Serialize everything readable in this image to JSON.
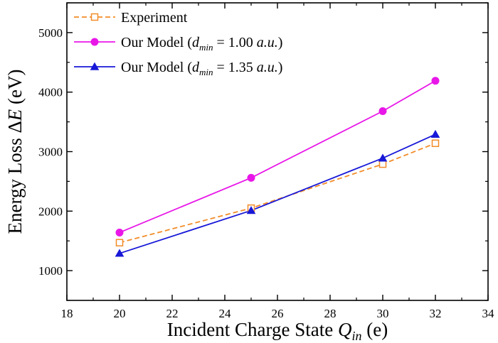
{
  "chart_data": {
    "type": "line",
    "xlabel": {
      "main": "Incident Charge State ",
      "var": "Q",
      "sub": "in",
      "unit": " (e)"
    },
    "ylabel": {
      "main": "Energy Loss Δ",
      "var": "E",
      "unit": " (eV)"
    },
    "xlim": [
      18,
      34
    ],
    "ylim": [
      500,
      5500
    ],
    "xticks": [
      18,
      20,
      22,
      24,
      26,
      28,
      30,
      32,
      34
    ],
    "yticks": [
      1000,
      2000,
      3000,
      4000,
      5000
    ],
    "grid": false,
    "legend_position": "top-left",
    "series": [
      {
        "name": "Experiment",
        "legend_parts": [
          {
            "t": "Experiment"
          }
        ],
        "color": "#f28c28",
        "dash": true,
        "marker": "square-open",
        "x": [
          20,
          25,
          30,
          32
        ],
        "y": [
          1470,
          2050,
          2790,
          3140
        ]
      },
      {
        "name": "Our Model (d_min = 1.00 a.u.)",
        "legend_parts": [
          {
            "t": "Our Model ("
          },
          {
            "t": "d",
            "i": true
          },
          {
            "t": "min",
            "i": true,
            "sub": true
          },
          {
            "t": " = 1.00 "
          },
          {
            "t": "a.u.",
            "i": true
          },
          {
            "t": ")"
          }
        ],
        "color": "#e817e8",
        "dash": false,
        "marker": "circle",
        "x": [
          20,
          25,
          30,
          32
        ],
        "y": [
          1640,
          2560,
          3680,
          4190
        ]
      },
      {
        "name": "Our Model (d_min = 1.35 a.u.)",
        "legend_parts": [
          {
            "t": "Our Model ("
          },
          {
            "t": "d",
            "i": true
          },
          {
            "t": "min",
            "i": true,
            "sub": true
          },
          {
            "t": " = 1.35 "
          },
          {
            "t": "a.u.",
            "i": true
          },
          {
            "t": ")"
          }
        ],
        "color": "#1818d8",
        "dash": false,
        "marker": "triangle",
        "x": [
          20,
          25,
          30,
          32
        ],
        "y": [
          1290,
          2010,
          2890,
          3290
        ]
      }
    ]
  }
}
